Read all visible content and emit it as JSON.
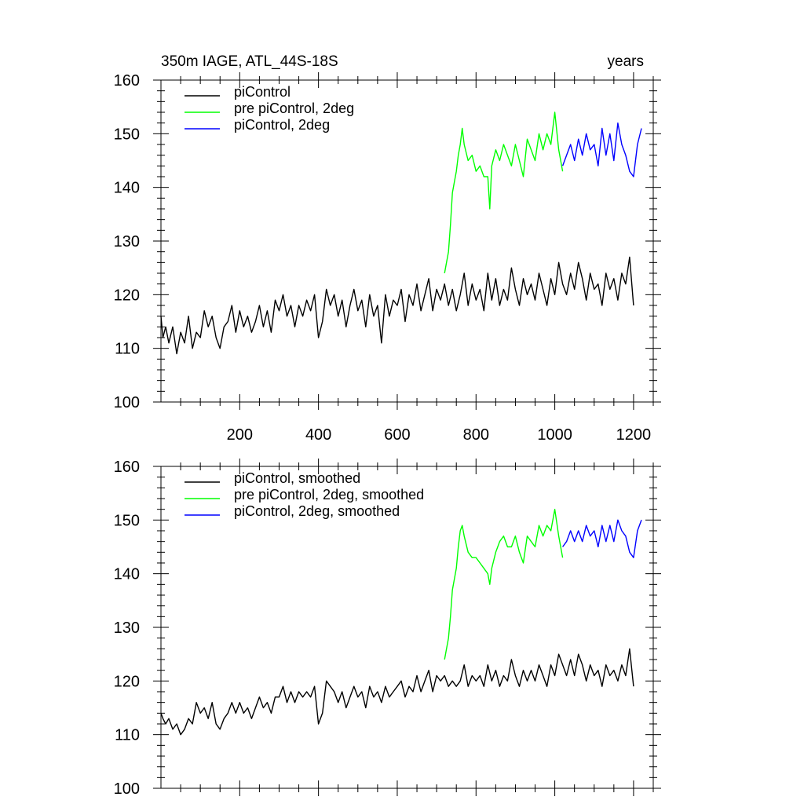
{
  "chart_data": [
    {
      "type": "line",
      "title": "350m IAGE, ATL_44S-18S",
      "title_right": "years",
      "xlim": [
        0,
        1250
      ],
      "ylim": [
        100,
        160
      ],
      "xticks": [
        200,
        400,
        600,
        800,
        1000,
        1200
      ],
      "yticks": [
        100,
        110,
        120,
        130,
        140,
        150,
        160
      ],
      "show_xtick_labels": true,
      "legend_position": "top-left",
      "series": [
        {
          "name": "piControl",
          "color": "#000000",
          "x": [
            0,
            5,
            12,
            20,
            30,
            40,
            50,
            60,
            70,
            80,
            90,
            100,
            110,
            120,
            130,
            140,
            150,
            160,
            170,
            180,
            190,
            200,
            210,
            220,
            230,
            240,
            250,
            260,
            270,
            280,
            290,
            300,
            310,
            320,
            330,
            340,
            350,
            360,
            370,
            380,
            390,
            400,
            410,
            420,
            430,
            440,
            450,
            460,
            470,
            480,
            490,
            500,
            510,
            520,
            530,
            540,
            550,
            560,
            570,
            580,
            590,
            600,
            610,
            620,
            630,
            640,
            650,
            660,
            670,
            680,
            690,
            700,
            710,
            720,
            730,
            740,
            750,
            760,
            770,
            780,
            790,
            800,
            810,
            820,
            830,
            840,
            850,
            860,
            870,
            880,
            890,
            900,
            910,
            920,
            930,
            940,
            950,
            960,
            970,
            980,
            990,
            1000,
            1010,
            1020,
            1030,
            1040,
            1050,
            1060,
            1070,
            1080,
            1090,
            1100,
            1110,
            1120,
            1130,
            1140,
            1150,
            1160,
            1170,
            1180,
            1190,
            1200
          ],
          "y": [
            116,
            112,
            114,
            111,
            114,
            109,
            113,
            111,
            116,
            110,
            113,
            112,
            117,
            114,
            116,
            112,
            110,
            114,
            115,
            118,
            113,
            117,
            114,
            116,
            113,
            115,
            118,
            114,
            117,
            113,
            119,
            117,
            120,
            116,
            118,
            114,
            118,
            116,
            119,
            117,
            120,
            112,
            115,
            121,
            118,
            120,
            116,
            119,
            114,
            118,
            121,
            117,
            119,
            114,
            120,
            116,
            118,
            111,
            120,
            116,
            119,
            118,
            121,
            115,
            120,
            118,
            122,
            117,
            120,
            123,
            117,
            121,
            119,
            122,
            118,
            121,
            117,
            120,
            124,
            118,
            122,
            119,
            121,
            117,
            124,
            119,
            123,
            118,
            121,
            119,
            125,
            121,
            118,
            123,
            120,
            122,
            119,
            124,
            121,
            118,
            123,
            120,
            126,
            122,
            120,
            124,
            121,
            126,
            123,
            119,
            124,
            121,
            122,
            118,
            124,
            121,
            123,
            119,
            124,
            122,
            127,
            118
          ]
        },
        {
          "name": "pre piControl, 2deg",
          "color": "#00ff00",
          "x": [
            720,
            725,
            730,
            735,
            740,
            745,
            750,
            755,
            760,
            765,
            770,
            780,
            790,
            800,
            810,
            820,
            830,
            835,
            840,
            850,
            860,
            870,
            880,
            890,
            900,
            910,
            920,
            930,
            940,
            950,
            960,
            970,
            980,
            990,
            1000,
            1010,
            1020
          ],
          "y": [
            124,
            126,
            128,
            133,
            139,
            141,
            143,
            146,
            148,
            151,
            148,
            145,
            146,
            143,
            144,
            142,
            142,
            136,
            144,
            147,
            145,
            148,
            146,
            144,
            148,
            145,
            142,
            149,
            147,
            145,
            150,
            147,
            150,
            148,
            154,
            147,
            143
          ]
        },
        {
          "name": "piControl, 2deg",
          "color": "#0000ff",
          "x": [
            1020,
            1030,
            1040,
            1050,
            1060,
            1070,
            1080,
            1090,
            1100,
            1110,
            1120,
            1130,
            1140,
            1150,
            1160,
            1170,
            1180,
            1190,
            1200,
            1210,
            1220
          ],
          "y": [
            144,
            146,
            148,
            145,
            149,
            146,
            150,
            147,
            148,
            144,
            151,
            146,
            150,
            145,
            152,
            148,
            146,
            143,
            142,
            148,
            151
          ]
        }
      ]
    },
    {
      "type": "line",
      "title": "",
      "title_right": "",
      "xlim": [
        0,
        1250
      ],
      "ylim": [
        100,
        160
      ],
      "xticks": [
        200,
        400,
        600,
        800,
        1000,
        1200
      ],
      "yticks": [
        100,
        110,
        120,
        130,
        140,
        150,
        160
      ],
      "show_xtick_labels": false,
      "legend_position": "top-left",
      "series": [
        {
          "name": "piControl, smoothed",
          "color": "#000000",
          "x": [
            0,
            5,
            12,
            20,
            30,
            40,
            50,
            60,
            70,
            80,
            90,
            100,
            110,
            120,
            130,
            140,
            150,
            160,
            170,
            180,
            190,
            200,
            210,
            220,
            230,
            240,
            250,
            260,
            270,
            280,
            290,
            300,
            310,
            320,
            330,
            340,
            350,
            360,
            370,
            380,
            390,
            400,
            410,
            420,
            430,
            440,
            450,
            460,
            470,
            480,
            490,
            500,
            510,
            520,
            530,
            540,
            550,
            560,
            570,
            580,
            590,
            600,
            610,
            620,
            630,
            640,
            650,
            660,
            670,
            680,
            690,
            700,
            710,
            720,
            730,
            740,
            750,
            760,
            770,
            780,
            790,
            800,
            810,
            820,
            830,
            840,
            850,
            860,
            870,
            880,
            890,
            900,
            910,
            920,
            930,
            940,
            950,
            960,
            970,
            980,
            990,
            1000,
            1010,
            1020,
            1030,
            1040,
            1050,
            1060,
            1070,
            1080,
            1090,
            1100,
            1110,
            1120,
            1130,
            1140,
            1150,
            1160,
            1170,
            1180,
            1190,
            1200
          ],
          "y": [
            114,
            113,
            112,
            113,
            111,
            112,
            110,
            111,
            113,
            112,
            116,
            114,
            115,
            113,
            116,
            112,
            111,
            113,
            114,
            116,
            114,
            116,
            114,
            115,
            113,
            115,
            117,
            115,
            116,
            114,
            117,
            117,
            119,
            116,
            118,
            116,
            118,
            117,
            118,
            117,
            119,
            112,
            114,
            120,
            119,
            118,
            116,
            118,
            115,
            117,
            119,
            117,
            118,
            115,
            119,
            117,
            118,
            116,
            119,
            117,
            118,
            119,
            120,
            117,
            119,
            118,
            121,
            118,
            120,
            122,
            118,
            121,
            120,
            121,
            119,
            120,
            119,
            120,
            123,
            119,
            121,
            120,
            121,
            119,
            123,
            120,
            122,
            119,
            121,
            120,
            124,
            121,
            119,
            122,
            120,
            122,
            120,
            123,
            121,
            119,
            123,
            121,
            125,
            123,
            121,
            124,
            121,
            125,
            123,
            120,
            123,
            121,
            122,
            119,
            123,
            121,
            122,
            120,
            123,
            121,
            126,
            119
          ]
        },
        {
          "name": "pre piControl, 2deg, smoothed",
          "color": "#00ff00",
          "x": [
            720,
            725,
            730,
            735,
            740,
            745,
            750,
            755,
            760,
            765,
            770,
            780,
            790,
            800,
            810,
            820,
            830,
            835,
            840,
            850,
            860,
            870,
            880,
            890,
            900,
            910,
            920,
            930,
            940,
            950,
            960,
            970,
            980,
            990,
            1000,
            1010,
            1020
          ],
          "y": [
            124,
            126,
            128,
            132,
            137,
            139,
            141,
            145,
            148,
            149,
            147,
            144,
            143,
            143,
            142,
            141,
            140,
            138,
            141,
            144,
            146,
            147,
            145,
            145,
            147,
            144,
            142,
            147,
            146,
            145,
            149,
            147,
            149,
            148,
            152,
            147,
            143
          ]
        },
        {
          "name": "piControl, 2deg, smoothed",
          "color": "#0000ff",
          "x": [
            1020,
            1030,
            1040,
            1050,
            1060,
            1070,
            1080,
            1090,
            1100,
            1110,
            1120,
            1130,
            1140,
            1150,
            1160,
            1170,
            1180,
            1190,
            1200,
            1210,
            1220
          ],
          "y": [
            145,
            146,
            148,
            146,
            148,
            146,
            149,
            147,
            148,
            145,
            149,
            146,
            149,
            146,
            150,
            148,
            147,
            144,
            143,
            148,
            150
          ]
        }
      ]
    }
  ]
}
